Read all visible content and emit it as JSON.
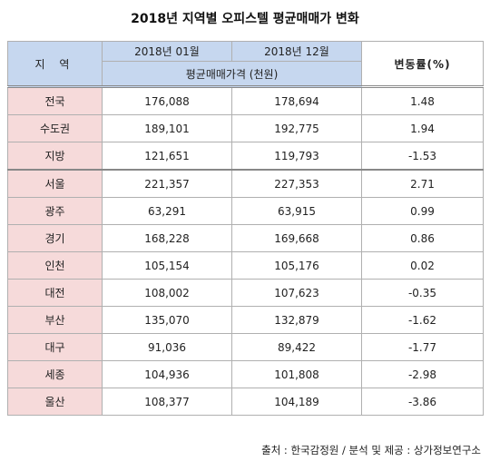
{
  "title": "2018년 지역별 오피스텔 평균매매가 변화",
  "header": {
    "region": "지 역",
    "month1": "2018년 01월",
    "month12": "2018년 12월",
    "unit": "평균매매가격 (천원)",
    "rate": "변동률(%)"
  },
  "rows": [
    {
      "region": "전국",
      "jan": "176,088",
      "dec": "178,694",
      "rate": "1.48"
    },
    {
      "region": "수도권",
      "jan": "189,101",
      "dec": "192,775",
      "rate": "1.94"
    },
    {
      "region": "지방",
      "jan": "121,651",
      "dec": "119,793",
      "rate": "-1.53"
    },
    {
      "region": "서울",
      "jan": "221,357",
      "dec": "227,353",
      "rate": "2.71"
    },
    {
      "region": "광주",
      "jan": "63,291",
      "dec": "63,915",
      "rate": "0.99"
    },
    {
      "region": "경기",
      "jan": "168,228",
      "dec": "169,668",
      "rate": "0.86"
    },
    {
      "region": "인천",
      "jan": "105,154",
      "dec": "105,176",
      "rate": "0.02"
    },
    {
      "region": "대전",
      "jan": "108,002",
      "dec": "107,623",
      "rate": "-0.35"
    },
    {
      "region": "부산",
      "jan": "135,070",
      "dec": "132,879",
      "rate": "-1.62"
    },
    {
      "region": "대구",
      "jan": "91,036",
      "dec": "89,422",
      "rate": "-1.77"
    },
    {
      "region": "세종",
      "jan": "104,936",
      "dec": "101,808",
      "rate": "-2.98"
    },
    {
      "region": "울산",
      "jan": "108,377",
      "dec": "104,189",
      "rate": "-3.86"
    }
  ],
  "source": "출처 : 한국감정원 / 분석 및 제공 : 상가정보연구소"
}
